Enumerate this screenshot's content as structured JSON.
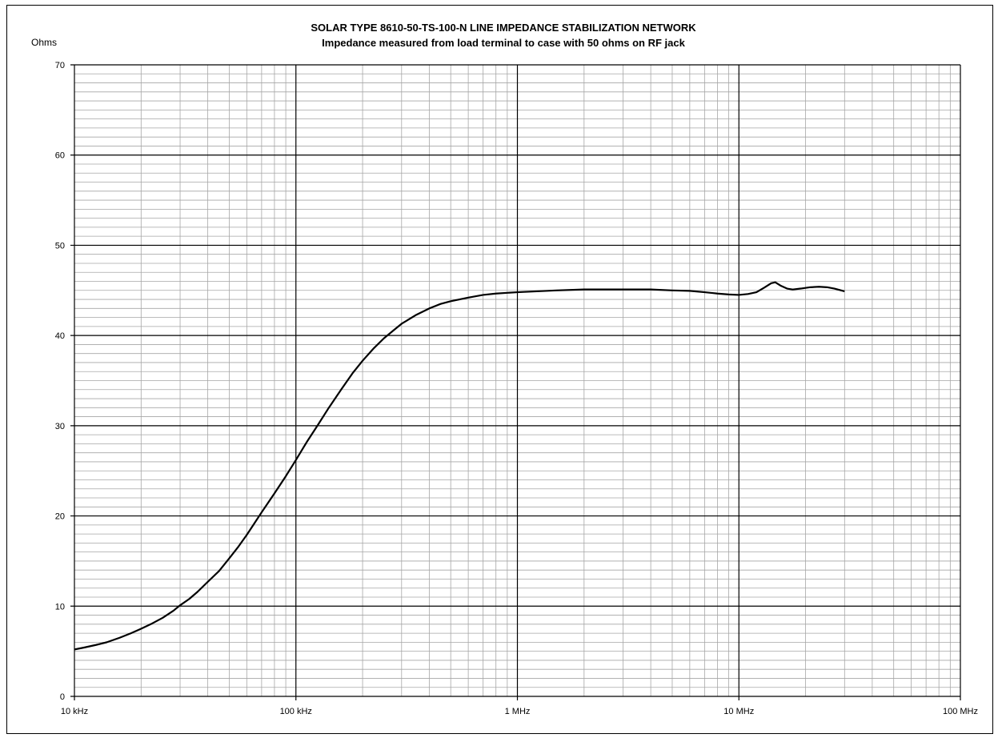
{
  "chart_data": {
    "type": "line",
    "title": "SOLAR TYPE 8610-50-TS-100-N LINE IMPEDANCE STABILIZATION NETWORK",
    "subtitle": "Impedance measured from load terminal to case with 50 ohms on RF jack",
    "ylabel": "Ohms",
    "xlabel": "",
    "x_scale": "log",
    "xlim": [
      "10 kHz",
      "100 MHz"
    ],
    "ylim": [
      0,
      70
    ],
    "x_ticks": [
      "10 kHz",
      "100 kHz",
      "1 MHz",
      "10 MHz",
      "100 MHz"
    ],
    "y_ticks": [
      "0",
      "10",
      "20",
      "30",
      "40",
      "50",
      "60",
      "70"
    ],
    "grid": true,
    "line_color": "#000000",
    "series": [
      {
        "x_unit": "Hz",
        "points": [
          [
            10000,
            5.2
          ],
          [
            11000,
            5.4
          ],
          [
            12500,
            5.7
          ],
          [
            14000,
            6.0
          ],
          [
            16000,
            6.5
          ],
          [
            18000,
            7.0
          ],
          [
            20000,
            7.5
          ],
          [
            22500,
            8.1
          ],
          [
            25000,
            8.7
          ],
          [
            28000,
            9.5
          ],
          [
            30000,
            10.1
          ],
          [
            33000,
            10.8
          ],
          [
            36000,
            11.6
          ],
          [
            40000,
            12.7
          ],
          [
            45000,
            13.9
          ],
          [
            50000,
            15.3
          ],
          [
            55000,
            16.6
          ],
          [
            60000,
            17.9
          ],
          [
            65000,
            19.2
          ],
          [
            70000,
            20.4
          ],
          [
            80000,
            22.5
          ],
          [
            90000,
            24.4
          ],
          [
            100000,
            26.2
          ],
          [
            112000,
            28.2
          ],
          [
            125000,
            30.0
          ],
          [
            140000,
            31.9
          ],
          [
            160000,
            34.0
          ],
          [
            180000,
            35.8
          ],
          [
            200000,
            37.2
          ],
          [
            225000,
            38.6
          ],
          [
            250000,
            39.7
          ],
          [
            280000,
            40.7
          ],
          [
            300000,
            41.3
          ],
          [
            350000,
            42.3
          ],
          [
            400000,
            43.0
          ],
          [
            450000,
            43.5
          ],
          [
            500000,
            43.8
          ],
          [
            600000,
            44.2
          ],
          [
            700000,
            44.5
          ],
          [
            800000,
            44.65
          ],
          [
            1000000,
            44.8
          ],
          [
            1500000,
            45.0
          ],
          [
            2000000,
            45.1
          ],
          [
            3000000,
            45.1
          ],
          [
            4000000,
            45.1
          ],
          [
            5000000,
            45.0
          ],
          [
            6000000,
            44.95
          ],
          [
            7000000,
            44.8
          ],
          [
            8000000,
            44.65
          ],
          [
            9000000,
            44.55
          ],
          [
            10000000,
            44.5
          ],
          [
            11000000,
            44.6
          ],
          [
            12000000,
            44.8
          ],
          [
            13000000,
            45.3
          ],
          [
            14000000,
            45.8
          ],
          [
            14600000,
            45.9
          ],
          [
            15500000,
            45.5
          ],
          [
            16500000,
            45.2
          ],
          [
            17500000,
            45.1
          ],
          [
            19000000,
            45.2
          ],
          [
            21000000,
            45.35
          ],
          [
            23000000,
            45.4
          ],
          [
            25000000,
            45.35
          ],
          [
            27000000,
            45.2
          ],
          [
            30000000,
            44.9
          ]
        ]
      }
    ]
  }
}
